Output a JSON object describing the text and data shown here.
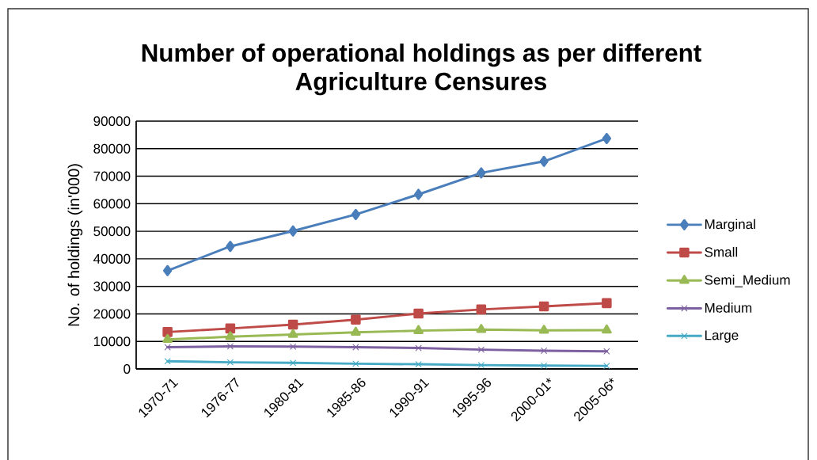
{
  "chart_data": {
    "type": "line",
    "title": "Number of operational holdings as per different Agriculture Censures",
    "ylabel": "No. of holdings (in'000)",
    "categories": [
      "1970-71",
      "1976-77",
      "1980-81",
      "1985-86",
      "1990-91",
      "1995-96",
      "2000-01*",
      "2005-06*"
    ],
    "series": [
      {
        "name": "Marginal",
        "color": "#4a7ebb",
        "marker": "diamond",
        "values": [
          35700,
          44500,
          50100,
          56100,
          63400,
          71200,
          75400,
          83700
        ]
      },
      {
        "name": "Small",
        "color": "#be4b48",
        "marker": "square",
        "values": [
          13400,
          14700,
          16100,
          17900,
          20100,
          21600,
          22700,
          23900
        ]
      },
      {
        "name": "Semi_Medium",
        "color": "#98b954",
        "marker": "triangle",
        "values": [
          10700,
          11700,
          12500,
          13300,
          13900,
          14300,
          14000,
          14100
        ]
      },
      {
        "name": "Medium",
        "color": "#7d60a0",
        "marker": "cross",
        "values": [
          7900,
          8200,
          8100,
          7900,
          7600,
          7000,
          6600,
          6400
        ]
      },
      {
        "name": "Large",
        "color": "#46aac5",
        "marker": "cross",
        "values": [
          2800,
          2400,
          2200,
          1900,
          1700,
          1400,
          1200,
          1100
        ]
      }
    ],
    "ylim": [
      0,
      90000
    ],
    "yticks": [
      0,
      10000,
      20000,
      30000,
      40000,
      50000,
      60000,
      70000,
      80000,
      90000
    ],
    "grid": "y",
    "legend": "right"
  }
}
